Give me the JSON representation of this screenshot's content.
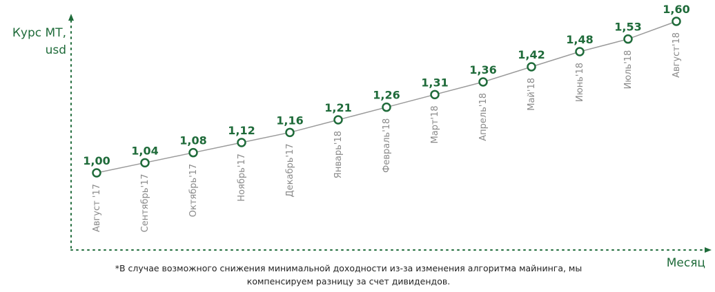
{
  "colors": {
    "accent": "#1f6b3a",
    "line": "#9a9a9a",
    "tick_text": "#8a8a8a",
    "text": "#222222"
  },
  "chart_data": {
    "type": "line",
    "ylabel_lines": [
      "Курс МТ,",
      "usd"
    ],
    "xlabel": "Месяц",
    "categories": [
      "Август '17",
      "Сентябрь'17",
      "Октябрь'17",
      "Ноябрь'17",
      "Декабрь'17",
      "Январь'18",
      "Февраль'18",
      "Март'18",
      "Апрель'18",
      "Май'18",
      "Июнь'18",
      "Июль'18",
      "Август'18"
    ],
    "values": [
      1.0,
      1.04,
      1.08,
      1.12,
      1.16,
      1.21,
      1.26,
      1.31,
      1.36,
      1.42,
      1.48,
      1.53,
      1.6
    ],
    "value_labels": [
      "1,00",
      "1,04",
      "1,08",
      "1,12",
      "1,16",
      "1,21",
      "1,26",
      "1,31",
      "1,36",
      "1,42",
      "1,48",
      "1,53",
      "1,60"
    ],
    "grid": false,
    "axes_style": "dotted"
  },
  "footnote": {
    "line1": "*В случае  возможного снижения  минимальной доходности из-за  изменения алгоритма майнинга, мы",
    "line2": "компенсируем разницу за счет дивидендов."
  }
}
